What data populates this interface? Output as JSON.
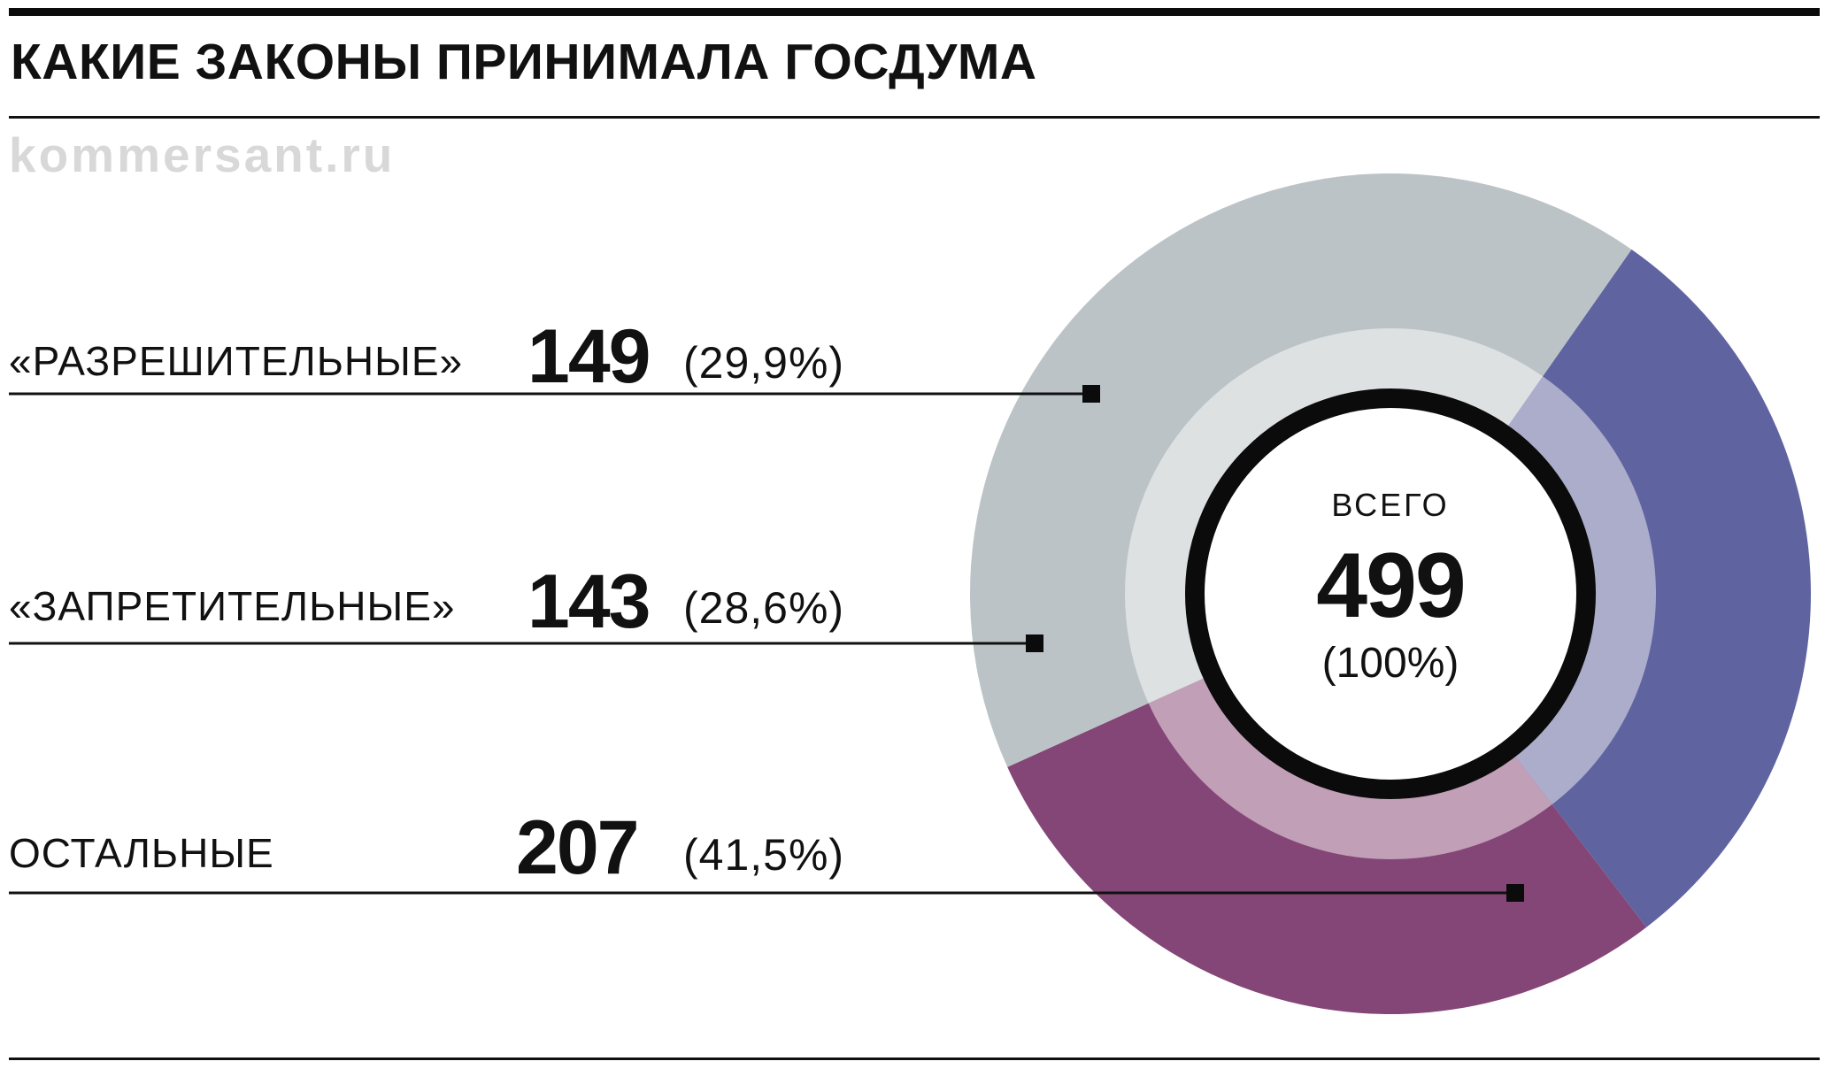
{
  "header": {
    "title": "КАКИЕ ЗАКОНЫ ПРИНИМАЛА ГОСДУМА",
    "source": "kommersant.ru"
  },
  "chart_data": {
    "type": "pie",
    "title": "КАКИЕ ЗАКОНЫ ПРИНИМАЛА ГОСДУМА",
    "categories": [
      "«РАЗРЕШИТЕЛЬНЫЕ»",
      "«ЗАПРЕТИТЕЛЬНЫЕ»",
      "ОСТАЛЬНЫЕ"
    ],
    "values": [
      149,
      143,
      207
    ],
    "percent_labels": [
      "(29,9%)",
      "(28,6%)",
      "(41,5%)"
    ],
    "colors": [
      "#5f64a1",
      "#844677",
      "#bcc3c6"
    ],
    "inner_colors": [
      "#abadcb",
      "#c19fb6",
      "#dde1e2"
    ],
    "total": {
      "label": "ВСЕГО",
      "value": 499,
      "percent_label": "(100%)"
    },
    "legend_placement": "left"
  }
}
